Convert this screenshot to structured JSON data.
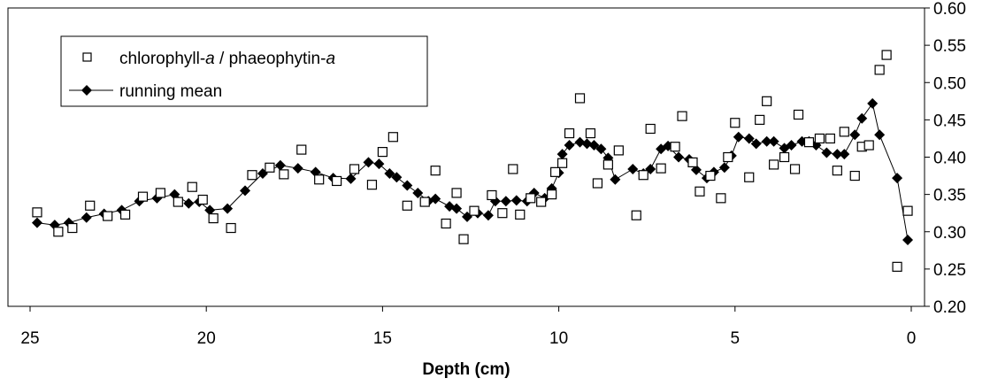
{
  "chart_data": {
    "type": "scatter",
    "xlabel": "Depth (cm)",
    "ylabel": "",
    "xlim": [
      0,
      25
    ],
    "x_reversed": true,
    "ylim": [
      0.2,
      0.6
    ],
    "x_ticks": [
      "25",
      "20",
      "15",
      "10",
      "5",
      "0"
    ],
    "y_ticks": [
      "0.20",
      "0.25",
      "0.30",
      "0.35",
      "0.40",
      "0.45",
      "0.50",
      "0.55",
      "0.60"
    ],
    "grid": false,
    "legend_position": "top-left",
    "legend": [
      {
        "label": "chlorophyll-",
        "label_italic": "a",
        "label_mid": " / phaeophytin-",
        "label_italic2": "a"
      },
      {
        "label": "running mean"
      }
    ],
    "series": [
      {
        "name": "chlorophyll-a / phaeophytin-a",
        "marker": "open-square",
        "color": "#000000",
        "points": [
          [
            24.8,
            0.326
          ],
          [
            24.2,
            0.3
          ],
          [
            23.8,
            0.305
          ],
          [
            23.3,
            0.335
          ],
          [
            22.8,
            0.321
          ],
          [
            22.3,
            0.323
          ],
          [
            21.8,
            0.347
          ],
          [
            21.3,
            0.352
          ],
          [
            20.8,
            0.34
          ],
          [
            20.4,
            0.36
          ],
          [
            20.1,
            0.343
          ],
          [
            19.8,
            0.318
          ],
          [
            19.3,
            0.305
          ],
          [
            18.7,
            0.376
          ],
          [
            18.2,
            0.386
          ],
          [
            17.8,
            0.377
          ],
          [
            17.3,
            0.41
          ],
          [
            16.8,
            0.37
          ],
          [
            16.3,
            0.368
          ],
          [
            15.8,
            0.384
          ],
          [
            15.3,
            0.363
          ],
          [
            15.0,
            0.407
          ],
          [
            14.7,
            0.427
          ],
          [
            14.3,
            0.335
          ],
          [
            13.8,
            0.34
          ],
          [
            13.5,
            0.382
          ],
          [
            13.2,
            0.311
          ],
          [
            12.9,
            0.352
          ],
          [
            12.7,
            0.29
          ],
          [
            12.4,
            0.328
          ],
          [
            11.9,
            0.349
          ],
          [
            11.6,
            0.325
          ],
          [
            11.3,
            0.384
          ],
          [
            11.1,
            0.323
          ],
          [
            10.8,
            0.345
          ],
          [
            10.5,
            0.34
          ],
          [
            10.2,
            0.35
          ],
          [
            10.1,
            0.38
          ],
          [
            9.9,
            0.392
          ],
          [
            9.7,
            0.432
          ],
          [
            9.4,
            0.479
          ],
          [
            9.1,
            0.432
          ],
          [
            8.9,
            0.365
          ],
          [
            8.6,
            0.39
          ],
          [
            8.3,
            0.409
          ],
          [
            7.8,
            0.322
          ],
          [
            7.6,
            0.376
          ],
          [
            7.4,
            0.438
          ],
          [
            7.1,
            0.385
          ],
          [
            6.7,
            0.414
          ],
          [
            6.5,
            0.455
          ],
          [
            6.2,
            0.393
          ],
          [
            6.0,
            0.354
          ],
          [
            5.7,
            0.375
          ],
          [
            5.4,
            0.345
          ],
          [
            5.2,
            0.4
          ],
          [
            5.0,
            0.446
          ],
          [
            4.6,
            0.373
          ],
          [
            4.3,
            0.45
          ],
          [
            4.1,
            0.475
          ],
          [
            3.9,
            0.39
          ],
          [
            3.6,
            0.4
          ],
          [
            3.3,
            0.384
          ],
          [
            3.2,
            0.457
          ],
          [
            2.9,
            0.42
          ],
          [
            2.6,
            0.425
          ],
          [
            2.3,
            0.425
          ],
          [
            2.1,
            0.382
          ],
          [
            1.9,
            0.434
          ],
          [
            1.6,
            0.375
          ],
          [
            1.4,
            0.414
          ],
          [
            1.2,
            0.416
          ],
          [
            0.9,
            0.517
          ],
          [
            0.7,
            0.537
          ],
          [
            0.4,
            0.253
          ],
          [
            0.1,
            0.328
          ]
        ]
      },
      {
        "name": "running mean",
        "marker": "filled-diamond",
        "color": "#000000",
        "points": [
          [
            24.8,
            0.312
          ],
          [
            24.3,
            0.309
          ],
          [
            23.9,
            0.312
          ],
          [
            23.4,
            0.319
          ],
          [
            22.9,
            0.324
          ],
          [
            22.4,
            0.329
          ],
          [
            21.9,
            0.341
          ],
          [
            21.4,
            0.345
          ],
          [
            20.9,
            0.35
          ],
          [
            20.5,
            0.338
          ],
          [
            20.2,
            0.34
          ],
          [
            19.9,
            0.329
          ],
          [
            19.4,
            0.331
          ],
          [
            18.9,
            0.355
          ],
          [
            18.4,
            0.378
          ],
          [
            17.9,
            0.389
          ],
          [
            17.4,
            0.385
          ],
          [
            16.9,
            0.38
          ],
          [
            16.4,
            0.372
          ],
          [
            15.9,
            0.371
          ],
          [
            15.4,
            0.393
          ],
          [
            15.1,
            0.391
          ],
          [
            14.8,
            0.378
          ],
          [
            14.6,
            0.373
          ],
          [
            14.3,
            0.362
          ],
          [
            14.0,
            0.352
          ],
          [
            13.7,
            0.341
          ],
          [
            13.5,
            0.344
          ],
          [
            13.1,
            0.334
          ],
          [
            12.9,
            0.331
          ],
          [
            12.6,
            0.32
          ],
          [
            12.3,
            0.325
          ],
          [
            12.0,
            0.322
          ],
          [
            11.8,
            0.341
          ],
          [
            11.5,
            0.341
          ],
          [
            11.2,
            0.342
          ],
          [
            10.9,
            0.341
          ],
          [
            10.7,
            0.352
          ],
          [
            10.4,
            0.345
          ],
          [
            10.2,
            0.358
          ],
          [
            10.0,
            0.379
          ],
          [
            9.9,
            0.404
          ],
          [
            9.7,
            0.416
          ],
          [
            9.4,
            0.42
          ],
          [
            9.2,
            0.418
          ],
          [
            9.0,
            0.416
          ],
          [
            8.8,
            0.411
          ],
          [
            8.6,
            0.399
          ],
          [
            8.4,
            0.37
          ],
          [
            7.9,
            0.384
          ],
          [
            7.6,
            0.378
          ],
          [
            7.4,
            0.384
          ],
          [
            7.1,
            0.411
          ],
          [
            6.9,
            0.415
          ],
          [
            6.6,
            0.4
          ],
          [
            6.3,
            0.397
          ],
          [
            6.1,
            0.383
          ],
          [
            5.8,
            0.372
          ],
          [
            5.6,
            0.38
          ],
          [
            5.3,
            0.386
          ],
          [
            5.1,
            0.402
          ],
          [
            4.9,
            0.427
          ],
          [
            4.6,
            0.425
          ],
          [
            4.4,
            0.418
          ],
          [
            4.1,
            0.421
          ],
          [
            3.9,
            0.421
          ],
          [
            3.6,
            0.412
          ],
          [
            3.4,
            0.416
          ],
          [
            3.1,
            0.421
          ],
          [
            2.9,
            0.421
          ],
          [
            2.7,
            0.416
          ],
          [
            2.4,
            0.406
          ],
          [
            2.1,
            0.404
          ],
          [
            1.9,
            0.404
          ],
          [
            1.6,
            0.43
          ],
          [
            1.4,
            0.452
          ],
          [
            1.1,
            0.472
          ],
          [
            0.9,
            0.43
          ],
          [
            0.4,
            0.372
          ],
          [
            0.1,
            0.289
          ]
        ]
      }
    ]
  }
}
